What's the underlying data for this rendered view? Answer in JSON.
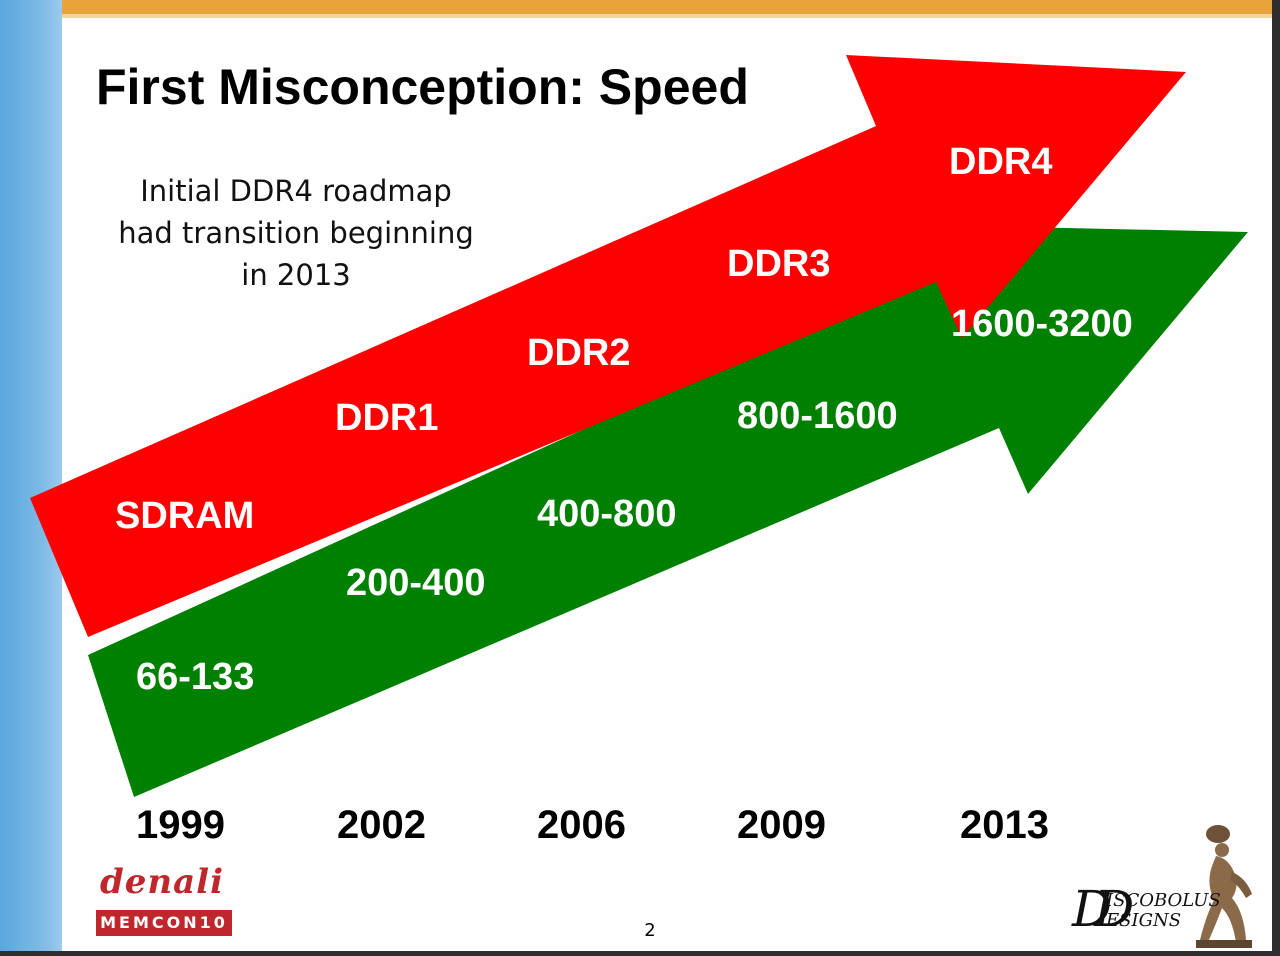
{
  "slide": {
    "title": "First Misconception: Speed",
    "note": "Initial DDR4 roadmap\nhad transition beginning\nin 2013",
    "page_number": "2"
  },
  "diagram": {
    "technology_arrow": {
      "color": "#ff0000",
      "labels": [
        "SDRAM",
        "DDR1",
        "DDR2",
        "DDR3",
        "DDR4"
      ]
    },
    "speed_arrow": {
      "color": "#008000",
      "labels": [
        "66-133",
        "200-400",
        "400-800",
        "800-1600",
        "1600-3200"
      ]
    },
    "years": [
      "1999",
      "2002",
      "2006",
      "2009",
      "2013"
    ]
  },
  "logos": {
    "left": {
      "name": "denali",
      "badge": "MEMCON10",
      "accent": "#c0272d"
    },
    "right": {
      "mark": "DD",
      "line1": "ISCOBOLUS",
      "line2": "ESIGNS"
    }
  }
}
